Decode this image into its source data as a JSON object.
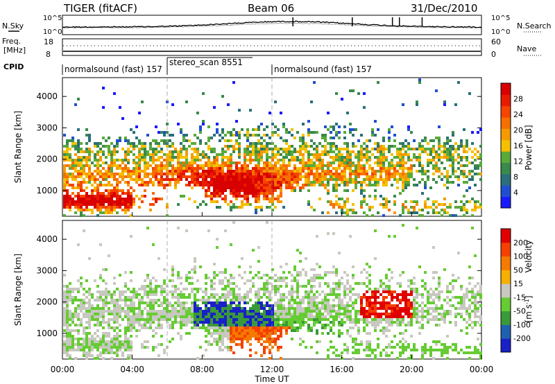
{
  "header": {
    "title": "TIGER (fitACF)",
    "beam": "Beam 06",
    "date": "31/Dec/2010"
  },
  "status_panel": {
    "nsky_label": "N.Sky",
    "nsearch_label": "N.Search",
    "left_ticks": [
      "10^5",
      "10^0"
    ],
    "right_ticks": [
      "10^5",
      "10^0"
    ],
    "freq_label": "Freq.",
    "freq_unit": "[MHz]",
    "freq_ticks": [
      "18",
      "8"
    ],
    "nave_label": "Nave",
    "nave_ticks": [
      "60",
      "0"
    ],
    "cpid_label": "CPID",
    "cpid_segments": [
      {
        "label": "normalsound (fast) 157",
        "start_hour": 0,
        "end_hour": 6
      },
      {
        "label": "stereo_scan 8551",
        "start_hour": 6,
        "end_hour": 12
      },
      {
        "label": "normalsound (fast) 157",
        "start_hour": 12,
        "end_hour": 24
      }
    ]
  },
  "x_axis": {
    "label": "Time UT",
    "ticks": [
      "00:00",
      "04:00",
      "08:00",
      "12:00",
      "16:00",
      "20:00",
      "00:00"
    ]
  },
  "chart_data": [
    {
      "type": "heatmap",
      "ylabel": "Slant Range [km]",
      "y_ticks": [
        "1000",
        "2000",
        "3000",
        "4000"
      ],
      "ylim": [
        180,
        4600
      ],
      "xlim": [
        0,
        24
      ],
      "colorbar": {
        "label": "Power [dB]",
        "ticks": [
          "28",
          "24",
          "20",
          "16",
          "12",
          "8",
          "4"
        ],
        "colors": [
          "#1a1aff",
          "#1f4fd0",
          "#2a6f7a",
          "#3a8a4a",
          "#5aaa3a",
          "#f5c000",
          "#f59a00",
          "#f57000",
          "#f54500",
          "#e81a00",
          "#d80000"
        ]
      }
    },
    {
      "type": "heatmap",
      "ylabel": "Slant Range [km]",
      "y_ticks": [
        "1000",
        "2000",
        "3000",
        "4000"
      ],
      "ylim": [
        180,
        4600
      ],
      "xlim": [
        0,
        24
      ],
      "colorbar": {
        "label": "Velocity",
        "unit": "[m s",
        "unit_exp": "-1",
        "unit_end": "]",
        "ticks": [
          "200",
          "100",
          "50",
          "15",
          "-15",
          "-50",
          "-100",
          "-200"
        ],
        "colors": [
          "#1a20c8",
          "#2060b0",
          "#3a9a3a",
          "#66cc33",
          "#c8c8c0",
          "#f5b000",
          "#f57a00",
          "#f54000",
          "#e00000"
        ]
      }
    }
  ]
}
